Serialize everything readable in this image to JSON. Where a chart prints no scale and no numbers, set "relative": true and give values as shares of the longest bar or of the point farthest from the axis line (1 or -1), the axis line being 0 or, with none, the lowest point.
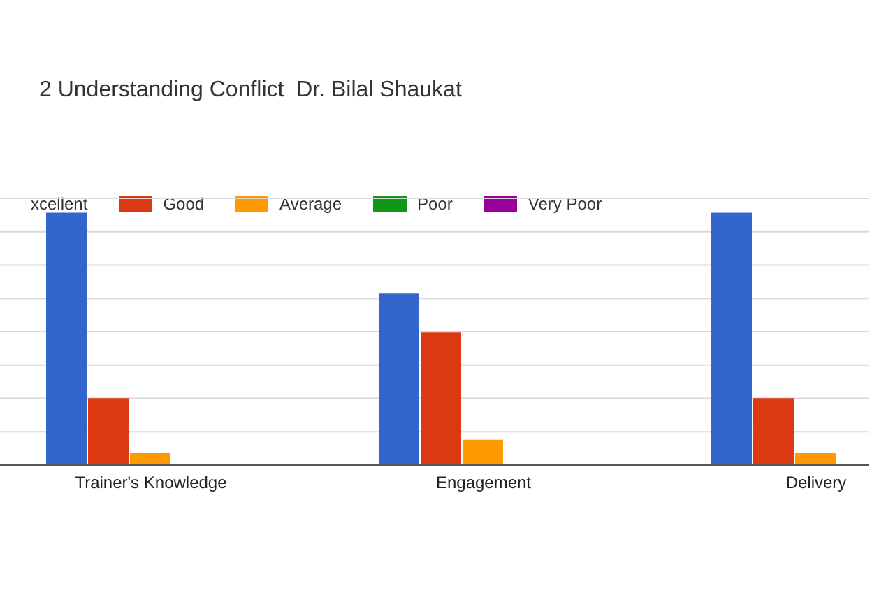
{
  "chart_data": {
    "type": "bar",
    "title": "2 Understanding Conflict  Dr. Bilal Shaukat",
    "relative": true,
    "categories": [
      "Trainer's Knowledge",
      "Engagement",
      "Delivery"
    ],
    "series": [
      {
        "name": "xcellent",
        "color": "#3366cc",
        "values": [
          1,
          0.68,
          1
        ]
      },
      {
        "name": "Good",
        "color": "#dc3912",
        "values": [
          0.265,
          0.525,
          0.265
        ]
      },
      {
        "name": "Average",
        "color": "#ff9900",
        "values": [
          0.05,
          0.1,
          0.05
        ]
      },
      {
        "name": "Poor",
        "color": "#109618",
        "values": [
          0,
          0,
          0
        ]
      },
      {
        "name": "Very Poor",
        "color": "#990099",
        "values": [
          0,
          0,
          0
        ]
      }
    ],
    "grid": "y",
    "legend": "top"
  }
}
